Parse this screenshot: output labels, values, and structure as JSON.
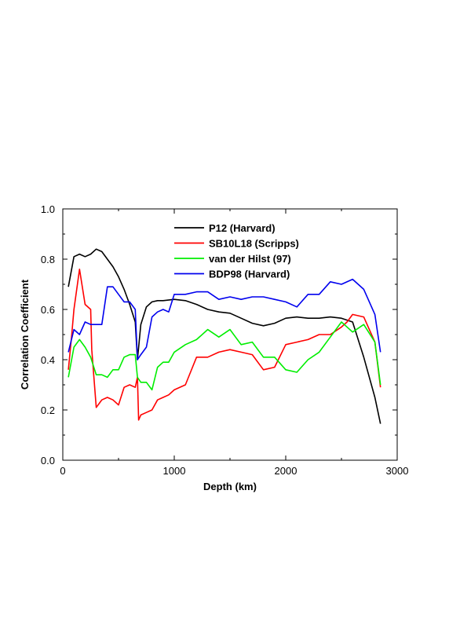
{
  "chart_data": {
    "type": "line",
    "xlabel": "Depth (km)",
    "ylabel": "Correlation Coefficient",
    "xlim": [
      0,
      3000
    ],
    "ylim": [
      0,
      1
    ],
    "xticks": [
      0,
      1000,
      2000,
      3000
    ],
    "xtick_labels": [
      "0",
      "1000",
      "2000",
      "3000"
    ],
    "yticks": [
      0,
      0.2,
      0.4,
      0.6,
      0.8,
      1.0
    ],
    "ytick_labels": [
      "0.0",
      "0.2",
      "0.4",
      "0.6",
      "0.8",
      "1.0"
    ],
    "grid": false,
    "legend_position": "top-center",
    "series": [
      {
        "name": "P12 (Harvard)",
        "color": "#000000",
        "x": [
          50,
          100,
          150,
          200,
          250,
          300,
          350,
          400,
          450,
          500,
          550,
          600,
          650,
          670,
          700,
          750,
          800,
          850,
          900,
          1000,
          1100,
          1200,
          1300,
          1400,
          1500,
          1600,
          1700,
          1800,
          1900,
          2000,
          2100,
          2200,
          2300,
          2400,
          2500,
          2600,
          2700,
          2800,
          2850
        ],
        "y": [
          0.69,
          0.81,
          0.82,
          0.81,
          0.82,
          0.84,
          0.83,
          0.8,
          0.77,
          0.73,
          0.68,
          0.62,
          0.55,
          0.4,
          0.54,
          0.61,
          0.63,
          0.635,
          0.635,
          0.64,
          0.635,
          0.62,
          0.6,
          0.59,
          0.585,
          0.565,
          0.545,
          0.535,
          0.545,
          0.565,
          0.57,
          0.565,
          0.565,
          0.57,
          0.565,
          0.55,
          0.41,
          0.25,
          0.145
        ]
      },
      {
        "name": "SB10L18 (Scripps)",
        "color": "#ff0000",
        "x": [
          50,
          80,
          100,
          150,
          200,
          250,
          260,
          300,
          350,
          400,
          450,
          500,
          550,
          600,
          650,
          670,
          680,
          700,
          750,
          800,
          850,
          900,
          950,
          1000,
          1100,
          1200,
          1300,
          1400,
          1500,
          1600,
          1700,
          1800,
          1900,
          2000,
          2100,
          2200,
          2300,
          2400,
          2500,
          2550,
          2600,
          2700,
          2800,
          2850
        ],
        "y": [
          0.36,
          0.5,
          0.6,
          0.76,
          0.62,
          0.6,
          0.44,
          0.21,
          0.24,
          0.25,
          0.24,
          0.22,
          0.29,
          0.3,
          0.29,
          0.33,
          0.16,
          0.18,
          0.19,
          0.2,
          0.24,
          0.25,
          0.26,
          0.28,
          0.3,
          0.41,
          0.41,
          0.43,
          0.44,
          0.43,
          0.42,
          0.36,
          0.37,
          0.46,
          0.47,
          0.48,
          0.5,
          0.5,
          0.53,
          0.55,
          0.58,
          0.57,
          0.47,
          0.29
        ]
      },
      {
        "name": "van der Hilst (97)",
        "color": "#00ee00",
        "x": [
          50,
          100,
          150,
          200,
          250,
          300,
          350,
          400,
          450,
          500,
          550,
          600,
          650,
          670,
          700,
          750,
          800,
          850,
          900,
          950,
          1000,
          1100,
          1200,
          1300,
          1400,
          1500,
          1600,
          1700,
          1800,
          1900,
          2000,
          2100,
          2200,
          2300,
          2400,
          2500,
          2600,
          2700,
          2800,
          2850
        ],
        "y": [
          0.33,
          0.45,
          0.48,
          0.45,
          0.41,
          0.34,
          0.34,
          0.33,
          0.36,
          0.36,
          0.41,
          0.42,
          0.42,
          0.33,
          0.31,
          0.31,
          0.28,
          0.37,
          0.39,
          0.39,
          0.43,
          0.46,
          0.48,
          0.52,
          0.49,
          0.52,
          0.46,
          0.47,
          0.41,
          0.41,
          0.36,
          0.35,
          0.4,
          0.43,
          0.49,
          0.55,
          0.51,
          0.54,
          0.47,
          0.3
        ]
      },
      {
        "name": "BDP98 (Harvard)",
        "color": "#0000ee",
        "x": [
          50,
          100,
          150,
          200,
          250,
          300,
          350,
          400,
          450,
          500,
          550,
          600,
          650,
          670,
          700,
          750,
          800,
          850,
          900,
          950,
          1000,
          1100,
          1200,
          1300,
          1400,
          1500,
          1600,
          1700,
          1800,
          1900,
          2000,
          2100,
          2200,
          2300,
          2400,
          2500,
          2600,
          2700,
          2800,
          2850
        ],
        "y": [
          0.43,
          0.52,
          0.5,
          0.55,
          0.54,
          0.54,
          0.54,
          0.69,
          0.69,
          0.66,
          0.63,
          0.63,
          0.6,
          0.4,
          0.42,
          0.45,
          0.57,
          0.59,
          0.6,
          0.59,
          0.66,
          0.66,
          0.67,
          0.67,
          0.64,
          0.65,
          0.64,
          0.65,
          0.65,
          0.64,
          0.63,
          0.61,
          0.66,
          0.66,
          0.71,
          0.7,
          0.72,
          0.68,
          0.58,
          0.43
        ]
      }
    ]
  }
}
